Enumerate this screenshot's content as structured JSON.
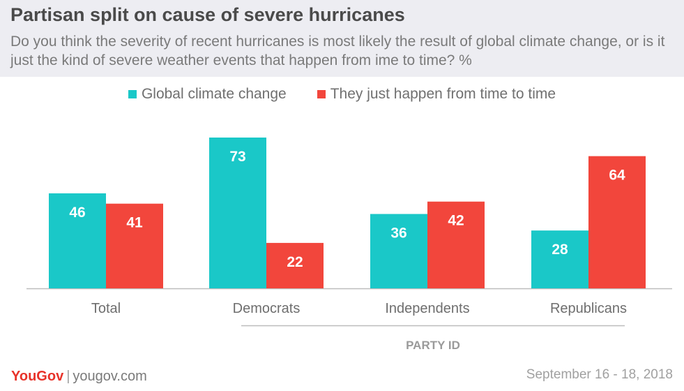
{
  "title": "Partisan split on cause of severe hurricanes",
  "subtitle": "Do you think the severity of recent hurricanes is most likely the result of global climate change, or is it just the kind of severe weather events that happen from ime to time? %",
  "footer": {
    "logo": "YouGov",
    "separator": "|",
    "url": "yougov.com",
    "date": "September 16 - 18, 2018"
  },
  "colors": {
    "header_bg": "#ededf2",
    "climate": "#1ac8c8",
    "happen": "#f2463c"
  },
  "chart_data": {
    "type": "bar",
    "categories": [
      "Total",
      "Democrats",
      "Independents",
      "Republicans"
    ],
    "series": [
      {
        "name": "Global climate change",
        "values": [
          46,
          73,
          36,
          28
        ],
        "color": "#1ac8c8"
      },
      {
        "name": "They just happen from time to time",
        "values": [
          41,
          22,
          42,
          64
        ],
        "color": "#f2463c"
      }
    ],
    "group_label": "PARTY ID",
    "ylim": [
      0,
      73
    ],
    "legend_position": "top-center",
    "grid": false
  }
}
